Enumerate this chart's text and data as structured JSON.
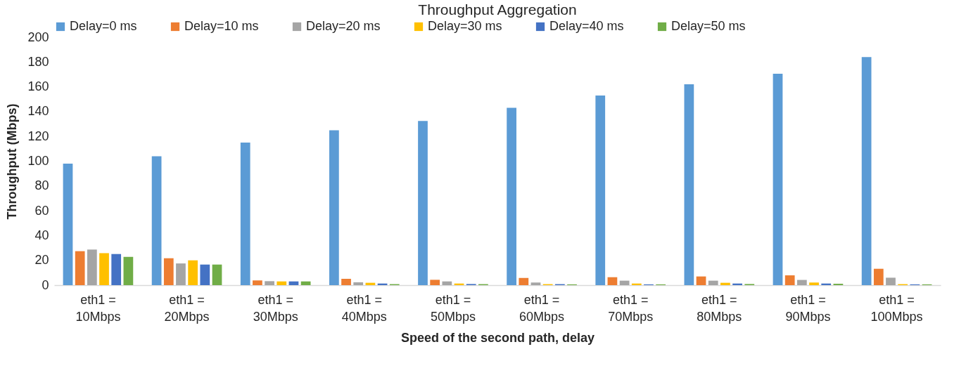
{
  "chart_data": {
    "type": "bar",
    "title": "Throughput Aggregation",
    "xlabel": "Speed of the second path, delay",
    "ylabel": "Throughput (Mbps)",
    "categories": [
      "eth1 = 10Mbps",
      "eth1 = 20Mbps",
      "eth1 = 30Mbps",
      "eth1 = 40Mbps",
      "eth1 = 50Mbps",
      "eth1 = 60Mbps",
      "eth1 = 70Mbps",
      "eth1 = 80Mbps",
      "eth1 = 90Mbps",
      "eth1 = 100Mbps"
    ],
    "series": [
      {
        "name": "Delay=0 ms",
        "color": "#5b9bd5",
        "values": [
          98,
          104,
          115,
          125,
          132.5,
          143,
          153,
          162,
          170.5,
          184
        ]
      },
      {
        "name": "Delay=10 ms",
        "color": "#ed7d31",
        "values": [
          27.4,
          21.7,
          3.8,
          5.1,
          4.3,
          5.8,
          6.4,
          7,
          7.9,
          13.2
        ]
      },
      {
        "name": "Delay=20 ms",
        "color": "#a5a5a5",
        "values": [
          28.7,
          17.5,
          3.2,
          2.3,
          3,
          2.1,
          3.6,
          3.6,
          4.2,
          6
        ]
      },
      {
        "name": "Delay=30 ms",
        "color": "#ffc000",
        "values": [
          25.8,
          20,
          3,
          1.9,
          1.3,
          0.8,
          1.3,
          1.9,
          2.1,
          0.8
        ]
      },
      {
        "name": "Delay=40 ms",
        "color": "#4472c4",
        "values": [
          25.1,
          16.6,
          3,
          1.3,
          0.9,
          0.8,
          0.6,
          1.3,
          1.3,
          0.6
        ]
      },
      {
        "name": "Delay=50 ms",
        "color": "#70ad47",
        "values": [
          22.8,
          16.6,
          3,
          0.8,
          0.8,
          0.6,
          0.6,
          0.9,
          1.1,
          0.6
        ]
      }
    ],
    "ylim": [
      0,
      200
    ],
    "yticks": [
      0,
      20,
      40,
      60,
      80,
      100,
      120,
      140,
      160,
      180,
      200
    ],
    "grid": false,
    "legend": "top"
  }
}
